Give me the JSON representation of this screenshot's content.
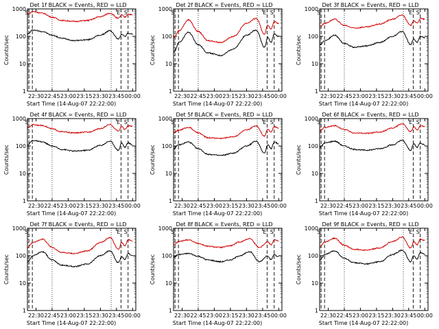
{
  "chart_data": [
    {
      "type": "line",
      "title": "Det 1f BLACK = Events, RED = LLD",
      "xlabel": "Start Time (14-Aug-07 22:22:00)",
      "ylabel": "Counts/sec",
      "ylog": true,
      "ylim": [
        1,
        1000
      ],
      "xlim": [
        22.367,
        24.05
      ],
      "xticks": [
        "22:30",
        "22:45",
        "23:00",
        "23:15",
        "23:30",
        "23:45",
        "00:00"
      ],
      "markers": [
        {
          "label": "S",
          "x": 22.39
        },
        {
          "label": "E",
          "x": 23.82
        },
        {
          "label": "S",
          "x": 23.93
        }
      ],
      "series": [
        {
          "color": "#000000",
          "x": [
            22.37,
            22.45,
            22.6,
            22.75,
            22.9,
            23.1,
            23.3,
            23.5,
            23.65,
            23.78,
            23.83,
            23.88,
            23.93,
            24.0
          ],
          "y": [
            120,
            170,
            150,
            110,
            85,
            70,
            75,
            110,
            160,
            80,
            120,
            100,
            130,
            120
          ]
        },
        {
          "color": "#d00000",
          "x": [
            22.37,
            22.45,
            22.6,
            22.75,
            22.9,
            23.1,
            23.3,
            23.5,
            23.65,
            23.78,
            23.83,
            23.88,
            23.93,
            24.0
          ],
          "y": [
            650,
            800,
            700,
            500,
            380,
            350,
            380,
            520,
            700,
            450,
            600,
            500,
            650,
            600
          ]
        }
      ]
    },
    {
      "type": "line",
      "title": "Det 2f BLACK = Events, RED = LLD",
      "xlabel": "Start Time (14-Aug-07 22:22:00)",
      "ylabel": "Counts/sec",
      "ylog": true,
      "ylim": [
        1,
        1000
      ],
      "xlim": [
        22.367,
        24.05
      ],
      "xticks": [
        "22:30",
        "22:45",
        "23:00",
        "23:15",
        "23:30",
        "23:45",
        "00:00"
      ],
      "markers": [
        {
          "label": "S",
          "x": 22.39
        },
        {
          "label": "E",
          "x": 23.82
        },
        {
          "label": "S",
          "x": 23.93
        }
      ],
      "series": [
        {
          "color": "#000000",
          "x": [
            22.37,
            22.45,
            22.6,
            22.75,
            22.9,
            23.1,
            23.3,
            23.5,
            23.65,
            23.78,
            23.83,
            23.88,
            23.93,
            24.0
          ],
          "y": [
            25,
            60,
            140,
            50,
            25,
            20,
            35,
            110,
            170,
            40,
            90,
            60,
            120,
            100
          ]
        },
        {
          "color": "#d00000",
          "x": [
            22.37,
            22.45,
            22.6,
            22.75,
            22.9,
            23.1,
            23.3,
            23.5,
            23.65,
            23.78,
            23.83,
            23.88,
            23.93,
            24.0
          ],
          "y": [
            90,
            160,
            400,
            150,
            70,
            60,
            100,
            300,
            450,
            120,
            260,
            180,
            340,
            300
          ]
        }
      ]
    },
    {
      "type": "line",
      "title": "Det 3f BLACK = Events, RED = LLD",
      "xlabel": "Start Time (14-Aug-07 22:22:00)",
      "ylabel": "Counts/sec",
      "ylog": true,
      "ylim": [
        1,
        1000
      ],
      "xlim": [
        22.367,
        24.05
      ],
      "xticks": [
        "22:30",
        "22:45",
        "23:00",
        "23:15",
        "23:30",
        "23:45",
        "00:00"
      ],
      "markers": [
        {
          "label": "S",
          "x": 22.39
        },
        {
          "label": "E",
          "x": 23.82
        },
        {
          "label": "S",
          "x": 23.93
        }
      ],
      "series": [
        {
          "color": "#000000",
          "x": [
            22.37,
            22.45,
            22.6,
            22.75,
            22.9,
            23.1,
            23.3,
            23.5,
            23.65,
            23.78,
            23.83,
            23.88,
            23.93,
            24.0
          ],
          "y": [
            50,
            70,
            110,
            55,
            40,
            45,
            60,
            100,
            150,
            50,
            80,
            60,
            100,
            90
          ]
        },
        {
          "color": "#d00000",
          "x": [
            22.37,
            22.45,
            22.6,
            22.75,
            22.9,
            23.1,
            23.3,
            23.5,
            23.65,
            23.78,
            23.83,
            23.88,
            23.93,
            24.0
          ],
          "y": [
            230,
            300,
            420,
            250,
            200,
            220,
            280,
            420,
            600,
            250,
            380,
            300,
            450,
            420
          ]
        }
      ]
    },
    {
      "type": "line",
      "title": "Det 4f BLACK = Events, RED = LLD",
      "xlabel": "Start Time (14-Aug-07 22:22:00)",
      "ylabel": "Counts/sec",
      "ylog": true,
      "ylim": [
        1,
        1000
      ],
      "xlim": [
        22.367,
        24.05
      ],
      "xticks": [
        "22:30",
        "22:45",
        "23:00",
        "23:15",
        "23:30",
        "23:45",
        "00:00"
      ],
      "markers": [
        {
          "label": "S",
          "x": 22.39
        },
        {
          "label": "E",
          "x": 23.82
        },
        {
          "label": "S",
          "x": 23.93
        }
      ],
      "series": [
        {
          "color": "#000000",
          "x": [
            22.37,
            22.45,
            22.6,
            22.75,
            22.9,
            23.1,
            23.3,
            23.5,
            23.65,
            23.78,
            23.83,
            23.88,
            23.93,
            24.0
          ],
          "y": [
            110,
            160,
            140,
            100,
            75,
            65,
            70,
            105,
            150,
            70,
            130,
            90,
            130,
            110
          ]
        },
        {
          "color": "#d00000",
          "x": [
            22.37,
            22.45,
            22.6,
            22.75,
            22.9,
            23.1,
            23.3,
            23.5,
            23.65,
            23.78,
            23.83,
            23.88,
            23.93,
            24.0
          ],
          "y": [
            450,
            600,
            560,
            420,
            330,
            300,
            320,
            430,
            600,
            350,
            520,
            400,
            550,
            520
          ]
        }
      ]
    },
    {
      "type": "line",
      "title": "Det 5f BLACK = Events, RED = LLD",
      "xlabel": "Start Time (14-Aug-07 22:22:00)",
      "ylabel": "Counts/sec",
      "ylog": true,
      "ylim": [
        1,
        1000
      ],
      "xlim": [
        22.367,
        24.05
      ],
      "xticks": [
        "22:30",
        "22:45",
        "23:00",
        "23:15",
        "23:30",
        "23:45",
        "00:00"
      ],
      "markers": [
        {
          "label": "S",
          "x": 22.39
        },
        {
          "label": "E",
          "x": 23.82
        },
        {
          "label": "S",
          "x": 23.93
        }
      ],
      "series": [
        {
          "color": "#000000",
          "x": [
            22.37,
            22.45,
            22.6,
            22.75,
            22.9,
            23.1,
            23.3,
            23.5,
            23.65,
            23.78,
            23.83,
            23.88,
            23.93,
            24.0
          ],
          "y": [
            80,
            110,
            140,
            80,
            50,
            45,
            55,
            100,
            150,
            55,
            110,
            80,
            140,
            120
          ]
        },
        {
          "color": "#d00000",
          "x": [
            22.37,
            22.45,
            22.6,
            22.75,
            22.9,
            23.1,
            23.3,
            23.5,
            23.65,
            23.78,
            23.83,
            23.88,
            23.93,
            24.0
          ],
          "y": [
            300,
            380,
            480,
            300,
            200,
            190,
            220,
            380,
            550,
            230,
            420,
            320,
            500,
            460
          ]
        }
      ]
    },
    {
      "type": "line",
      "title": "Det 6f BLACK = Events, RED = LLD",
      "xlabel": "Start Time (14-Aug-07 22:22:00)",
      "ylabel": "Counts/sec",
      "ylog": true,
      "ylim": [
        1,
        1000
      ],
      "xlim": [
        22.367,
        24.05
      ],
      "xticks": [
        "22:30",
        "22:45",
        "23:00",
        "23:15",
        "23:30",
        "23:45",
        "00:00"
      ],
      "markers": [
        {
          "label": "S",
          "x": 22.39
        },
        {
          "label": "E",
          "x": 23.82
        },
        {
          "label": "S",
          "x": 23.93
        }
      ],
      "series": [
        {
          "color": "#000000",
          "x": [
            22.37,
            22.45,
            22.6,
            22.75,
            22.9,
            23.1,
            23.3,
            23.5,
            23.65,
            23.78,
            23.83,
            23.88,
            23.93,
            24.0
          ],
          "y": [
            90,
            130,
            150,
            100,
            75,
            70,
            80,
            110,
            160,
            70,
            120,
            90,
            130,
            110
          ]
        },
        {
          "color": "#d00000",
          "x": [
            22.37,
            22.45,
            22.6,
            22.75,
            22.9,
            23.1,
            23.3,
            23.5,
            23.65,
            23.78,
            23.83,
            23.88,
            23.93,
            24.0
          ],
          "y": [
            350,
            480,
            550,
            400,
            300,
            290,
            320,
            450,
            650,
            330,
            500,
            380,
            550,
            520
          ]
        }
      ]
    },
    {
      "type": "line",
      "title": "Det 7f BLACK = Events, RED = LLD",
      "xlabel": "Start Time (14-Aug-07 22:22:00)",
      "ylabel": "Counts/sec",
      "ylog": true,
      "ylim": [
        1,
        1000
      ],
      "xlim": [
        22.367,
        24.05
      ],
      "xticks": [
        "22:30",
        "22:45",
        "23:00",
        "23:15",
        "23:30",
        "23:45",
        "00:00"
      ],
      "markers": [
        {
          "label": "S",
          "x": 22.39
        },
        {
          "label": "E",
          "x": 23.82
        },
        {
          "label": "S",
          "x": 23.93
        }
      ],
      "series": [
        {
          "color": "#000000",
          "x": [
            22.37,
            22.45,
            22.6,
            22.75,
            22.9,
            23.1,
            23.3,
            23.5,
            23.65,
            23.78,
            23.83,
            23.88,
            23.93,
            24.0
          ],
          "y": [
            60,
            100,
            140,
            70,
            45,
            40,
            50,
            100,
            150,
            55,
            90,
            70,
            120,
            100
          ]
        },
        {
          "color": "#d00000",
          "x": [
            22.37,
            22.45,
            22.6,
            22.75,
            22.9,
            23.1,
            23.3,
            23.5,
            23.65,
            23.78,
            23.83,
            23.88,
            23.93,
            24.0
          ],
          "y": [
            200,
            300,
            400,
            200,
            130,
            120,
            150,
            300,
            450,
            170,
            300,
            230,
            380,
            340
          ]
        }
      ]
    },
    {
      "type": "line",
      "title": "Det 8f BLACK = Events, RED = LLD",
      "xlabel": "Start Time (14-Aug-07 22:22:00)",
      "ylabel": "Counts/sec",
      "ylog": true,
      "ylim": [
        1,
        1000
      ],
      "xlim": [
        22.367,
        24.05
      ],
      "xticks": [
        "22:30",
        "22:45",
        "23:00",
        "23:15",
        "23:30",
        "23:45",
        "00:00"
      ],
      "markers": [
        {
          "label": "S",
          "x": 22.39
        },
        {
          "label": "E",
          "x": 23.82
        },
        {
          "label": "S",
          "x": 23.93
        }
      ],
      "series": [
        {
          "color": "#000000",
          "x": [
            22.37,
            22.45,
            22.6,
            22.75,
            22.9,
            23.1,
            23.25,
            23.4,
            23.55,
            23.7,
            23.83,
            23.88,
            23.93,
            24.0
          ],
          "y": [
            90,
            110,
            120,
            95,
            70,
            60,
            70,
            100,
            140,
            60,
            100,
            70,
            110,
            90
          ]
        },
        {
          "color": "#d00000",
          "x": [
            22.37,
            22.45,
            22.6,
            22.75,
            22.9,
            23.1,
            23.25,
            23.4,
            23.55,
            23.7,
            23.83,
            23.88,
            23.93,
            24.0
          ],
          "y": [
            250,
            330,
            380,
            280,
            220,
            200,
            230,
            320,
            420,
            200,
            320,
            250,
            380,
            340
          ]
        }
      ]
    },
    {
      "type": "line",
      "title": "Det 9f BLACK = Events, RED = LLD",
      "xlabel": "Start Time (14-Aug-07 22:22:00)",
      "ylabel": "Counts/sec",
      "ylog": true,
      "ylim": [
        1,
        1000
      ],
      "xlim": [
        22.367,
        24.05
      ],
      "xticks": [
        "22:30",
        "22:45",
        "23:00",
        "23:15",
        "23:30",
        "23:45",
        "00:00"
      ],
      "markers": [
        {
          "label": "S",
          "x": 22.39
        },
        {
          "label": "E",
          "x": 23.82
        },
        {
          "label": "S",
          "x": 23.93
        }
      ],
      "series": [
        {
          "color": "#000000",
          "x": [
            22.37,
            22.45,
            22.6,
            22.75,
            22.9,
            23.1,
            23.3,
            23.5,
            23.65,
            23.78,
            23.83,
            23.88,
            23.93,
            24.0
          ],
          "y": [
            70,
            110,
            150,
            80,
            55,
            50,
            60,
            110,
            160,
            60,
            100,
            75,
            130,
            110
          ]
        },
        {
          "color": "#d00000",
          "x": [
            22.37,
            22.45,
            22.6,
            22.75,
            22.9,
            23.1,
            23.3,
            23.5,
            23.65,
            23.78,
            23.83,
            23.88,
            23.93,
            24.0
          ],
          "y": [
            220,
            320,
            430,
            240,
            170,
            160,
            190,
            330,
            480,
            190,
            320,
            250,
            400,
            360
          ]
        }
      ]
    }
  ]
}
